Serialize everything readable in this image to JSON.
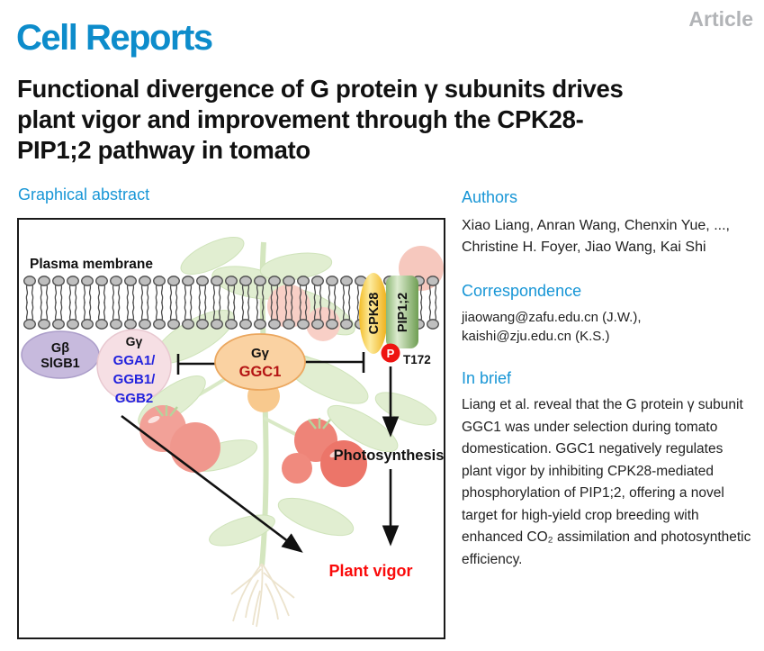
{
  "header": {
    "journal": "Cell Reports",
    "article_type": "Article",
    "title_lines": [
      "Functional divergence of G protein γ subunits drives",
      "plant vigor and improvement through the CPK28-",
      "PIP1;2 pathway in tomato"
    ]
  },
  "graphical_abstract": {
    "heading": "Graphical abstract"
  },
  "authors": {
    "heading": "Authors",
    "lines": [
      "Xiao Liang, Anran Wang, Chenxin Yue, ...,",
      "Christine H. Foyer, Jiao Wang, Kai Shi"
    ]
  },
  "correspondence": {
    "heading": "Correspondence",
    "lines": [
      "jiaowang@zafu.edu.cn (J.W.),",
      "kaishi@zju.edu.cn (K.S.)"
    ]
  },
  "in_brief": {
    "heading": "In brief",
    "text": "Liang et al. reveal that the G protein γ subunit GGC1 was under selection during tomato domestication. GGC1 negatively regulates plant vigor by inhibiting CPK28-mediated phosphorylation of PIP1;2, offering a novel target for high-yield crop breeding with enhanced CO₂ assimilation and photosynthetic efficiency."
  },
  "figure": {
    "membrane_label": "Plasma membrane",
    "g_beta": {
      "subunit": "Gβ",
      "gene": "SlGB1"
    },
    "g_gamma_group": {
      "subunit": "Gγ",
      "genes": [
        "GGA1/",
        "GGB1/",
        "GGB2"
      ]
    },
    "g_gamma_ggc1": {
      "subunit": "Gγ",
      "gene": "GGC1"
    },
    "kinase_label": "CPK28",
    "channel_label": "PIP1;2",
    "phospho_label": "P",
    "phospho_site": "T172",
    "photosynthesis_label": "Photosynthesis",
    "plant_vigor_label": "Plant vigor"
  },
  "colors": {
    "logo_blue": "#0d8ccb",
    "heading_blue": "#1896d6",
    "article_gray": "#b2b4b7",
    "gene_blue": "#2222dd",
    "ggc1_red": "#b41414",
    "phospho_red": "#ee1411",
    "plant_vigor_red": "#fa0a0a",
    "gbeta_purple": "#c7badd",
    "ggamma_pink": "#f6dfe4",
    "ggc1_orange": "#fad2a2",
    "cpk28_gold": "#f2b81f",
    "pip12_green": "#7fae66"
  }
}
